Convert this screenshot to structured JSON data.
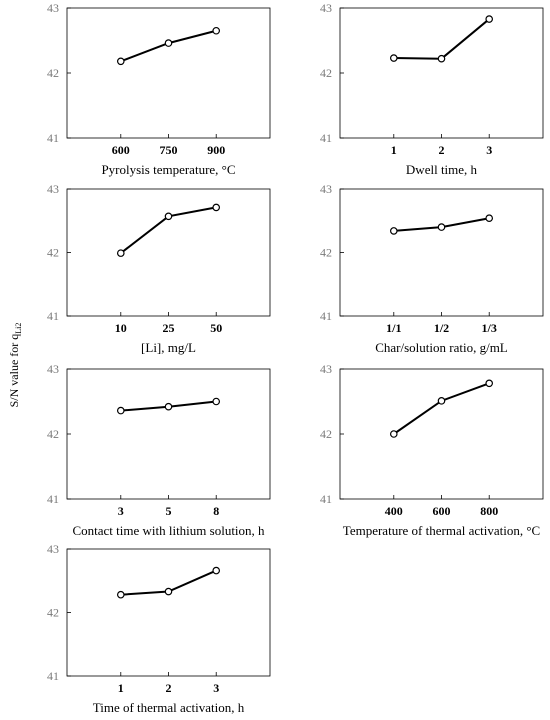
{
  "figure": {
    "ylabel": "S/N value for q",
    "ylabel_sub": "Li2"
  },
  "chart_data": [
    {
      "type": "line",
      "xlabel": "Pyrolysis temperature, °C",
      "categories": [
        "600",
        "750",
        "900"
      ],
      "values": [
        42.18,
        42.46,
        42.65
      ],
      "ylim": [
        41,
        43
      ],
      "yticks": [
        "41",
        "42",
        "43"
      ]
    },
    {
      "type": "line",
      "xlabel": "Dwell time, h",
      "categories": [
        "1",
        "2",
        "3"
      ],
      "values": [
        42.23,
        42.22,
        42.83
      ],
      "ylim": [
        41,
        43
      ],
      "yticks": [
        "41",
        "42",
        "43"
      ]
    },
    {
      "type": "line",
      "xlabel": "[Li], mg/L",
      "categories": [
        "10",
        "25",
        "50"
      ],
      "values": [
        41.99,
        42.57,
        42.71
      ],
      "ylim": [
        41,
        43
      ],
      "yticks": [
        "41",
        "42",
        "43"
      ]
    },
    {
      "type": "line",
      "xlabel": "Char/solution ratio, g/mL",
      "categories": [
        "1/1",
        "1/2",
        "1/3"
      ],
      "values": [
        42.34,
        42.4,
        42.54
      ],
      "ylim": [
        41,
        43
      ],
      "yticks": [
        "41",
        "42",
        "43"
      ]
    },
    {
      "type": "line",
      "xlabel": "Contact time with lithium solution, h",
      "categories": [
        "3",
        "5",
        "8"
      ],
      "values": [
        42.36,
        42.42,
        42.5
      ],
      "ylim": [
        41,
        43
      ],
      "yticks": [
        "41",
        "42",
        "43"
      ]
    },
    {
      "type": "line",
      "xlabel": "Temperature of thermal activation, °C",
      "categories": [
        "400",
        "600",
        "800"
      ],
      "values": [
        42.0,
        42.51,
        42.78
      ],
      "ylim": [
        41,
        43
      ],
      "yticks": [
        "41",
        "42",
        "43"
      ]
    },
    {
      "type": "line",
      "xlabel": "Time of thermal activation, h",
      "categories": [
        "1",
        "2",
        "3"
      ],
      "values": [
        42.28,
        42.33,
        42.66
      ],
      "ylim": [
        41,
        43
      ],
      "yticks": [
        "41",
        "42",
        "43"
      ]
    }
  ]
}
